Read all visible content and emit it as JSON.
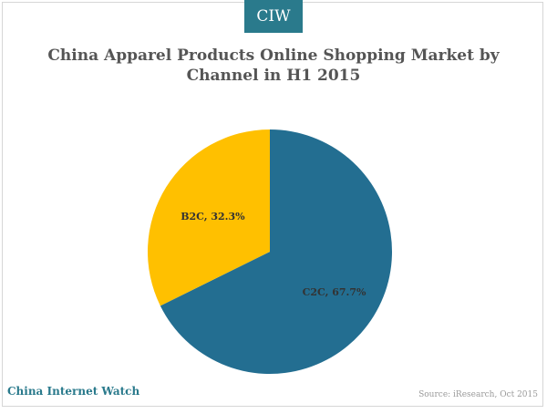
{
  "header": {
    "badge": "CIW"
  },
  "chart_data": {
    "type": "pie",
    "title_line1": "China Apparel Products Online Shopping Market by",
    "title_line2": "Channel in H1 2015",
    "slices": [
      {
        "name": "C2C",
        "value": 67.7,
        "label": "C2C, 67.7%",
        "color": "#236e91"
      },
      {
        "name": "B2C",
        "value": 32.3,
        "label": "B2C, 32.3%",
        "color": "#ffc000"
      }
    ]
  },
  "footer": {
    "brand": "China Internet Watch",
    "source": "Source: iResearch, Oct 2015"
  }
}
